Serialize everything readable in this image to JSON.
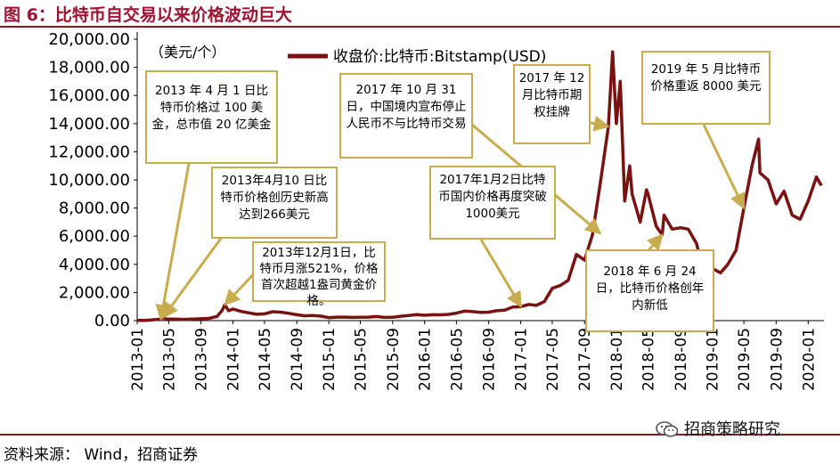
{
  "figure": {
    "title": "图 6：比特币自交易以来价格波动巨大",
    "source": "资料来源：  Wind，招商证券",
    "brand": "招商策略研究"
  },
  "chart_data": {
    "type": "line",
    "unit_label": "（美元/个）",
    "ylim": [
      0,
      20000
    ],
    "y_ticks": [
      "0.00",
      "2,000.00",
      "4,000.00",
      "6,000.00",
      "8,000.00",
      "10,000.00",
      "12,000.00",
      "14,000.00",
      "16,000.00",
      "18,000.00",
      "20,000.00"
    ],
    "x_ticks": [
      "2013-01",
      "2013-05",
      "2013-09",
      "2014-01",
      "2014-05",
      "2014-09",
      "2015-01",
      "2015-05",
      "2015-09",
      "2016-01",
      "2016-05",
      "2016-09",
      "2017-01",
      "2017-05",
      "2017-09",
      "2018-01",
      "2018-05",
      "2018-09",
      "2019-01",
      "2019-05",
      "2019-09",
      "2020-01"
    ],
    "xlim": [
      "2013-01-01",
      "2020-03-01"
    ],
    "grid": false,
    "legend_position": "top",
    "series": [
      {
        "name": "收盘价:比特币:Bitstamp(USD)",
        "color": "#7b1212",
        "points": [
          [
            "2013-01-01",
            13
          ],
          [
            "2013-02-01",
            20
          ],
          [
            "2013-03-01",
            60
          ],
          [
            "2013-04-01",
            100
          ],
          [
            "2013-04-10",
            230
          ],
          [
            "2013-04-20",
            120
          ],
          [
            "2013-05-01",
            115
          ],
          [
            "2013-06-01",
            100
          ],
          [
            "2013-07-01",
            90
          ],
          [
            "2013-08-01",
            110
          ],
          [
            "2013-09-01",
            130
          ],
          [
            "2013-10-01",
            160
          ],
          [
            "2013-11-01",
            300
          ],
          [
            "2013-11-20",
            700
          ],
          [
            "2013-12-01",
            1130
          ],
          [
            "2013-12-15",
            700
          ],
          [
            "2014-01-01",
            820
          ],
          [
            "2014-02-01",
            650
          ],
          [
            "2014-03-01",
            560
          ],
          [
            "2014-04-01",
            450
          ],
          [
            "2014-05-01",
            480
          ],
          [
            "2014-06-01",
            630
          ],
          [
            "2014-07-01",
            600
          ],
          [
            "2014-08-01",
            520
          ],
          [
            "2014-09-01",
            420
          ],
          [
            "2014-10-01",
            340
          ],
          [
            "2014-11-01",
            370
          ],
          [
            "2014-12-01",
            320
          ],
          [
            "2015-01-01",
            210
          ],
          [
            "2015-02-01",
            250
          ],
          [
            "2015-03-01",
            250
          ],
          [
            "2015-04-01",
            230
          ],
          [
            "2015-05-01",
            235
          ],
          [
            "2015-06-01",
            250
          ],
          [
            "2015-07-01",
            290
          ],
          [
            "2015-08-01",
            230
          ],
          [
            "2015-09-01",
            235
          ],
          [
            "2015-10-01",
            310
          ],
          [
            "2015-11-01",
            370
          ],
          [
            "2015-12-01",
            430
          ],
          [
            "2016-01-01",
            380
          ],
          [
            "2016-02-01",
            420
          ],
          [
            "2016-03-01",
            410
          ],
          [
            "2016-04-01",
            440
          ],
          [
            "2016-05-01",
            530
          ],
          [
            "2016-06-01",
            680
          ],
          [
            "2016-07-01",
            640
          ],
          [
            "2016-08-01",
            580
          ],
          [
            "2016-09-01",
            600
          ],
          [
            "2016-10-01",
            700
          ],
          [
            "2016-11-01",
            740
          ],
          [
            "2016-12-01",
            960
          ],
          [
            "2017-01-01",
            990
          ],
          [
            "2017-02-01",
            1150
          ],
          [
            "2017-03-01",
            1080
          ],
          [
            "2017-04-01",
            1350
          ],
          [
            "2017-05-01",
            2300
          ],
          [
            "2017-06-01",
            2500
          ],
          [
            "2017-07-01",
            2870
          ],
          [
            "2017-08-01",
            4700
          ],
          [
            "2017-09-01",
            4300
          ],
          [
            "2017-10-01",
            6100
          ],
          [
            "2017-11-01",
            9900
          ],
          [
            "2017-12-01",
            13800
          ],
          [
            "2017-12-17",
            19100
          ],
          [
            "2017-12-31",
            14000
          ],
          [
            "2018-01-15",
            17000
          ],
          [
            "2018-02-01",
            8500
          ],
          [
            "2018-02-20",
            11000
          ],
          [
            "2018-03-01",
            9000
          ],
          [
            "2018-04-01",
            7000
          ],
          [
            "2018-04-25",
            9300
          ],
          [
            "2018-05-01",
            9000
          ],
          [
            "2018-06-01",
            6700
          ],
          [
            "2018-06-24",
            6100
          ],
          [
            "2018-07-01",
            7500
          ],
          [
            "2018-08-01",
            6500
          ],
          [
            "2018-09-01",
            6600
          ],
          [
            "2018-10-01",
            6500
          ],
          [
            "2018-11-01",
            5500
          ],
          [
            "2018-11-25",
            3800
          ],
          [
            "2018-12-01",
            3500
          ],
          [
            "2018-12-15",
            3200
          ],
          [
            "2019-01-01",
            3700
          ],
          [
            "2019-02-01",
            3400
          ],
          [
            "2019-03-01",
            4000
          ],
          [
            "2019-04-01",
            5000
          ],
          [
            "2019-05-01",
            8000
          ],
          [
            "2019-06-01",
            11000
          ],
          [
            "2019-06-26",
            12900
          ],
          [
            "2019-07-01",
            10500
          ],
          [
            "2019-08-01",
            10000
          ],
          [
            "2019-09-01",
            8300
          ],
          [
            "2019-10-01",
            9200
          ],
          [
            "2019-11-01",
            7500
          ],
          [
            "2019-12-01",
            7200
          ],
          [
            "2020-01-01",
            8500
          ],
          [
            "2020-02-01",
            10200
          ],
          [
            "2020-02-20",
            9600
          ]
        ]
      }
    ],
    "annotations": [
      {
        "text": "2013 年 4 月 1 日比特币价格过 100 美金，总市值 20 亿美金"
      },
      {
        "text": "2013年4月10 日比特币价格创历史新高达到266美元"
      },
      {
        "text": "2013年12月1日，比特币月涨521%，价格首次超越1盎司黄金价格。"
      },
      {
        "text": "2017 年 10 月 31 日，中国境内宣布停止人民币不与比特币交易"
      },
      {
        "text": "2017年1月2日比特币国内价格再度突破1000美元"
      },
      {
        "text": "2017 年 12 月比特币期权挂牌"
      },
      {
        "text": "2018 年 6 月 24 日，比特币价格创年内新低"
      },
      {
        "text": "2019 年 5 月比特币价格重返 8000 美元"
      }
    ]
  }
}
